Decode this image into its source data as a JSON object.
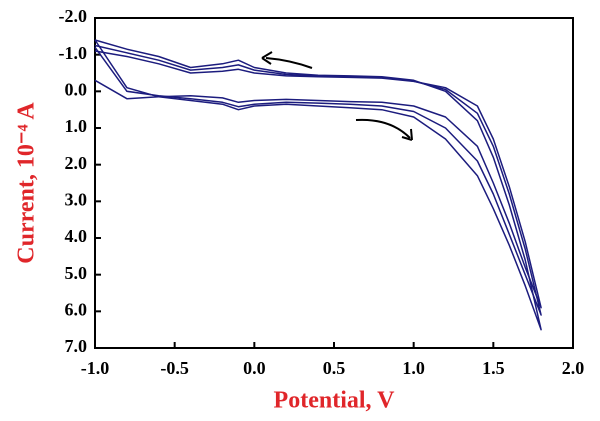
{
  "chart_data": {
    "type": "line",
    "xlabel": "Potential, V",
    "ylabel": "Current, 10⁻⁴ A",
    "x": [
      -1.0,
      -0.8,
      -0.6,
      -0.4,
      -0.2,
      -0.1,
      0,
      0.2,
      0.4,
      0.6,
      0.8,
      1.0,
      1.2,
      1.4,
      1.5,
      1.6,
      1.7,
      1.8,
      1.7,
      1.6,
      1.5,
      1.4,
      1.2,
      1.0,
      0.8,
      0.6,
      0.4,
      0.2,
      0,
      -0.1,
      -0.2,
      -0.4,
      -0.6,
      -0.8,
      -1.0
    ],
    "series": [
      {
        "color": "#1c1c7e",
        "values": [
          -1.4,
          -0.1,
          0.15,
          0.25,
          0.35,
          0.5,
          0.4,
          0.35,
          0.4,
          0.45,
          0.5,
          0.7,
          1.3,
          2.3,
          3.2,
          4.2,
          5.3,
          6.5,
          4.6,
          3.1,
          1.8,
          0.8,
          0.0,
          -0.3,
          -0.4,
          -0.42,
          -0.44,
          -0.5,
          -0.65,
          -0.85,
          -0.75,
          -0.65,
          -0.95,
          -1.15,
          -1.4
        ]
      },
      {
        "color": "#1c1c7e",
        "values": [
          -1.2,
          0.0,
          0.12,
          0.2,
          0.3,
          0.42,
          0.35,
          0.3,
          0.32,
          0.35,
          0.4,
          0.55,
          1.0,
          1.9,
          2.8,
          3.9,
          5.0,
          6.1,
          4.3,
          2.8,
          1.5,
          0.6,
          -0.05,
          -0.28,
          -0.38,
          -0.4,
          -0.42,
          -0.46,
          -0.58,
          -0.72,
          -0.65,
          -0.58,
          -0.85,
          -1.05,
          -1.25
        ]
      },
      {
        "color": "#1c1c7e",
        "values": [
          -0.3,
          0.2,
          0.15,
          0.12,
          0.18,
          0.3,
          0.25,
          0.22,
          0.25,
          0.28,
          0.3,
          0.4,
          0.7,
          1.5,
          2.5,
          3.6,
          4.8,
          5.9,
          4.1,
          2.6,
          1.3,
          0.4,
          -0.1,
          -0.27,
          -0.36,
          -0.38,
          -0.4,
          -0.42,
          -0.5,
          -0.6,
          -0.55,
          -0.5,
          -0.75,
          -0.95,
          -1.1
        ]
      }
    ],
    "xlim": [
      -1.0,
      2.0
    ],
    "xticks": [
      {
        "value": -1,
        "label": "-1.0"
      },
      -0.5,
      {
        "value": 0,
        "label": "0.0"
      },
      0.5,
      {
        "value": 1,
        "label": "1.0"
      },
      1.5,
      {
        "value": 2,
        "label": "2.0"
      }
    ],
    "ylim": [
      -2.0,
      7.0
    ],
    "yinverted": true,
    "yticks": [
      {
        "value": -2,
        "label": "-2.0"
      },
      {
        "value": -1,
        "label": "-1.0"
      },
      {
        "value": 0,
        "label": "0.0"
      },
      {
        "value": 1,
        "label": "1.0"
      },
      {
        "value": 2,
        "label": "2.0"
      },
      {
        "value": 3,
        "label": "3.0"
      },
      {
        "value": 4,
        "label": "4.0"
      },
      {
        "value": 5,
        "label": "5.0"
      },
      {
        "value": 6,
        "label": "6.0"
      },
      {
        "value": 7,
        "label": "7.0"
      }
    ],
    "grid": false
  }
}
